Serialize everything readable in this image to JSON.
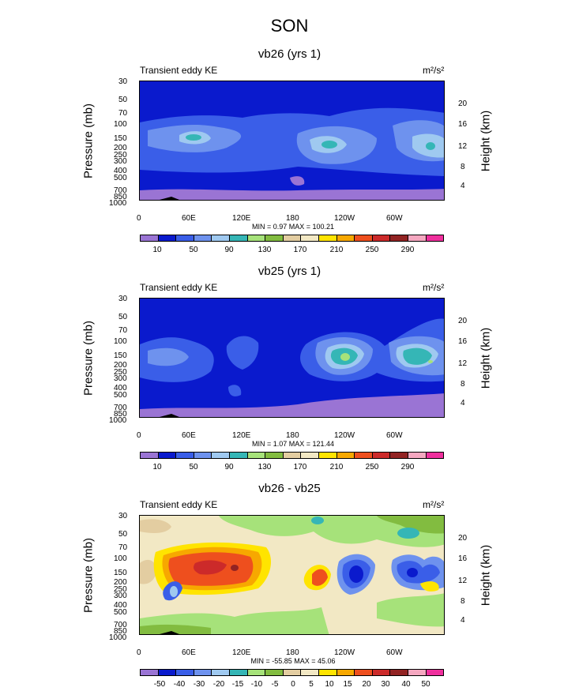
{
  "figure_title": "SON",
  "chart_data": [
    {
      "type": "heatmap",
      "title": "vb26 (yrs 1)",
      "left_label": "Transient eddy KE",
      "units": "m²/s²",
      "ylabel": "Pressure (mb)",
      "ylabel_right": "Height (km)",
      "x_ticks": [
        "0",
        "60E",
        "120E",
        "180",
        "120W",
        "60W"
      ],
      "y_ticks": [
        "30",
        "50",
        "70",
        "100",
        "150",
        "200",
        "250",
        "300",
        "400",
        "500",
        "700",
        "850",
        "1000"
      ],
      "y_ticks_right": [
        "20",
        "16",
        "12",
        "8",
        "4"
      ],
      "stats": "MIN =   0.97  MAX = 100.21",
      "min": 0.97,
      "max": 100.21,
      "colorbar_labels": [
        "10",
        "50",
        "90",
        "130",
        "170",
        "210",
        "250",
        "290"
      ],
      "colorbar_colors": [
        "#9a74d4",
        "#0a1acd",
        "#3a5ee8",
        "#6e92ee",
        "#9fc9f0",
        "#35b6b6",
        "#a6e27a",
        "#82bc40",
        "#e3cda1",
        "#f2e8c4",
        "#ffe400",
        "#f7a800",
        "#ee4f1e",
        "#cc2a2a",
        "#922323",
        "#f5a7c0",
        "#ef2f9d"
      ]
    },
    {
      "type": "heatmap",
      "title": "vb25 (yrs 1)",
      "left_label": "Transient eddy KE",
      "units": "m²/s²",
      "ylabel": "Pressure (mb)",
      "ylabel_right": "Height (km)",
      "x_ticks": [
        "0",
        "60E",
        "120E",
        "180",
        "120W",
        "60W"
      ],
      "y_ticks": [
        "30",
        "50",
        "70",
        "100",
        "150",
        "200",
        "250",
        "300",
        "400",
        "500",
        "700",
        "850",
        "1000"
      ],
      "y_ticks_right": [
        "20",
        "16",
        "12",
        "8",
        "4"
      ],
      "stats": "MIN =   1.07  MAX = 121.44",
      "min": 1.07,
      "max": 121.44,
      "colorbar_labels": [
        "10",
        "50",
        "90",
        "130",
        "170",
        "210",
        "250",
        "290"
      ],
      "colorbar_colors": [
        "#9a74d4",
        "#0a1acd",
        "#3a5ee8",
        "#6e92ee",
        "#9fc9f0",
        "#35b6b6",
        "#a6e27a",
        "#82bc40",
        "#e3cda1",
        "#f2e8c4",
        "#ffe400",
        "#f7a800",
        "#ee4f1e",
        "#cc2a2a",
        "#922323",
        "#f5a7c0",
        "#ef2f9d"
      ]
    },
    {
      "type": "heatmap",
      "title": "vb26 - vb25",
      "left_label": "Transient eddy KE",
      "units": "m²/s²",
      "ylabel": "Pressure (mb)",
      "ylabel_right": "Height (km)",
      "x_ticks": [
        "0",
        "60E",
        "120E",
        "180",
        "120W",
        "60W"
      ],
      "y_ticks": [
        "30",
        "50",
        "70",
        "100",
        "150",
        "200",
        "250",
        "300",
        "400",
        "500",
        "700",
        "850",
        "1000"
      ],
      "y_ticks_right": [
        "20",
        "16",
        "12",
        "8",
        "4"
      ],
      "stats": "MIN = -55.85  MAX =  45.06",
      "min": -55.85,
      "max": 45.06,
      "colorbar_labels": [
        "-50",
        "-40",
        "-30",
        "-20",
        "-15",
        "-10",
        "-5",
        "0",
        "5",
        "10",
        "15",
        "20",
        "30",
        "40",
        "50"
      ],
      "colorbar_colors": [
        "#9a74d4",
        "#0a1acd",
        "#3a5ee8",
        "#6e92ee",
        "#9fc9f0",
        "#35b6b6",
        "#a6e27a",
        "#82bc40",
        "#e3cda1",
        "#f2e8c4",
        "#ffe400",
        "#f7a800",
        "#ee4f1e",
        "#cc2a2a",
        "#922323",
        "#f5a7c0",
        "#ef2f9d"
      ]
    }
  ]
}
